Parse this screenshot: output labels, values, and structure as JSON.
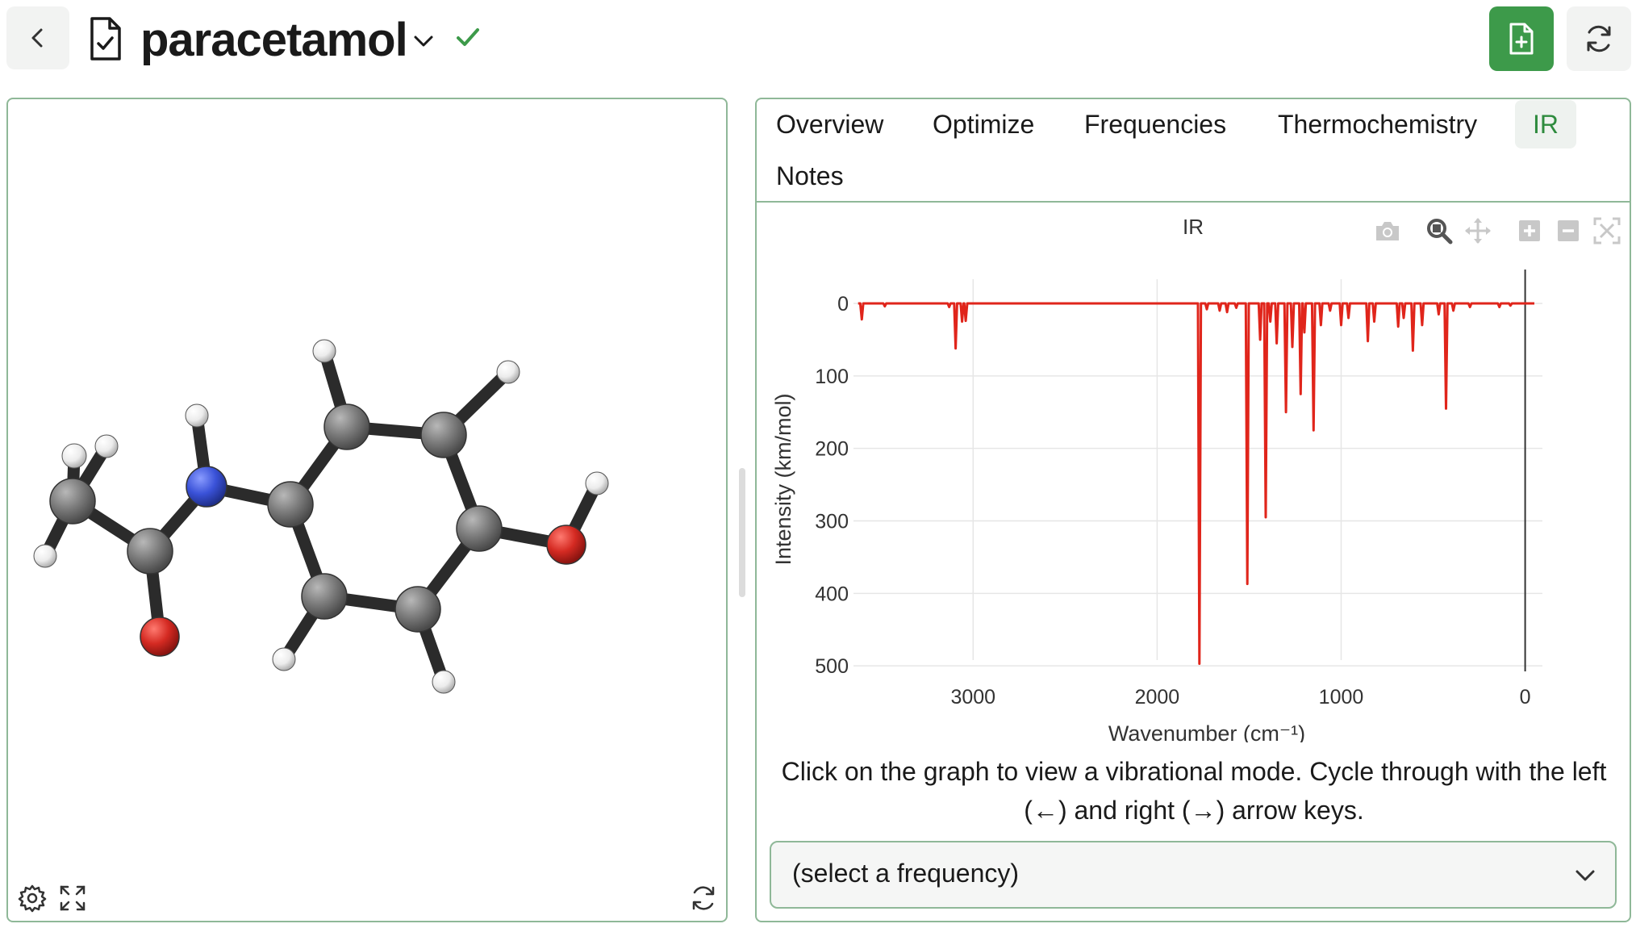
{
  "header": {
    "back_icon": "chevron-left-icon",
    "file_icon": "file-check-icon",
    "title": "paracetamol",
    "title_dropdown_icon": "chevron-down-icon",
    "saved_icon": "check-icon",
    "new_file_icon": "file-plus-icon",
    "refresh_icon": "refresh-icon",
    "accent_color": "#3d9a4a"
  },
  "viewer": {
    "settings_icon": "gear-icon",
    "fullscreen_icon": "expand-icon",
    "reset_icon": "refresh-icon",
    "atom_colors": {
      "carbon": "#7a7a7a",
      "hydrogen": "#f2f2f2",
      "nitrogen": "#3a52d8",
      "oxygen": "#d42a22",
      "bond": "#2b2b2b"
    }
  },
  "tabs": {
    "items": [
      {
        "label": "Overview"
      },
      {
        "label": "Optimize"
      },
      {
        "label": "Frequencies"
      },
      {
        "label": "Thermochemistry"
      },
      {
        "label": "IR",
        "active": true
      },
      {
        "label": "Notes"
      }
    ]
  },
  "chart_toolbar": {
    "icons": [
      "camera-icon",
      "zoom-icon",
      "pan-icon",
      "zoom-in-icon",
      "zoom-out-icon",
      "autoscale-icon"
    ]
  },
  "chart_data": {
    "type": "line",
    "title": "IR",
    "xlabel": "Wavenumber (cm⁻¹)",
    "ylabel": "Intensity (km/mol)",
    "xlim": [
      3650,
      -50
    ],
    "ylim": [
      0,
      500
    ],
    "y_inverted": true,
    "x_ticks": [
      3000,
      2000,
      1000,
      0
    ],
    "y_ticks": [
      0,
      100,
      200,
      300,
      400,
      500
    ],
    "grid": true,
    "line_color": "#e0251b",
    "series": [
      {
        "peaks": [
          {
            "x": 3605,
            "y": 22
          },
          {
            "x": 3480,
            "y": 4
          },
          {
            "x": 3130,
            "y": 5
          },
          {
            "x": 3095,
            "y": 62
          },
          {
            "x": 3060,
            "y": 25
          },
          {
            "x": 3040,
            "y": 24
          },
          {
            "x": 1770,
            "y": 497
          },
          {
            "x": 1730,
            "y": 8
          },
          {
            "x": 1660,
            "y": 10
          },
          {
            "x": 1620,
            "y": 12
          },
          {
            "x": 1570,
            "y": 6
          },
          {
            "x": 1510,
            "y": 387
          },
          {
            "x": 1440,
            "y": 50
          },
          {
            "x": 1410,
            "y": 295
          },
          {
            "x": 1385,
            "y": 25
          },
          {
            "x": 1350,
            "y": 55
          },
          {
            "x": 1300,
            "y": 150
          },
          {
            "x": 1265,
            "y": 60
          },
          {
            "x": 1220,
            "y": 125
          },
          {
            "x": 1200,
            "y": 40
          },
          {
            "x": 1150,
            "y": 175
          },
          {
            "x": 1110,
            "y": 30
          },
          {
            "x": 1060,
            "y": 10
          },
          {
            "x": 1000,
            "y": 30
          },
          {
            "x": 960,
            "y": 20
          },
          {
            "x": 855,
            "y": 52
          },
          {
            "x": 820,
            "y": 25
          },
          {
            "x": 690,
            "y": 32
          },
          {
            "x": 660,
            "y": 20
          },
          {
            "x": 610,
            "y": 65
          },
          {
            "x": 560,
            "y": 30
          },
          {
            "x": 470,
            "y": 15
          },
          {
            "x": 430,
            "y": 145
          },
          {
            "x": 390,
            "y": 10
          },
          {
            "x": 300,
            "y": 5
          },
          {
            "x": 140,
            "y": 5
          },
          {
            "x": 80,
            "y": 3
          }
        ]
      }
    ]
  },
  "help_text": "Click on the graph to view a vibrational mode. Cycle through with the left (←) and right (→) arrow keys.",
  "frequency_select": {
    "value": "(select a frequency)",
    "dropdown_icon": "chevron-down-icon"
  }
}
